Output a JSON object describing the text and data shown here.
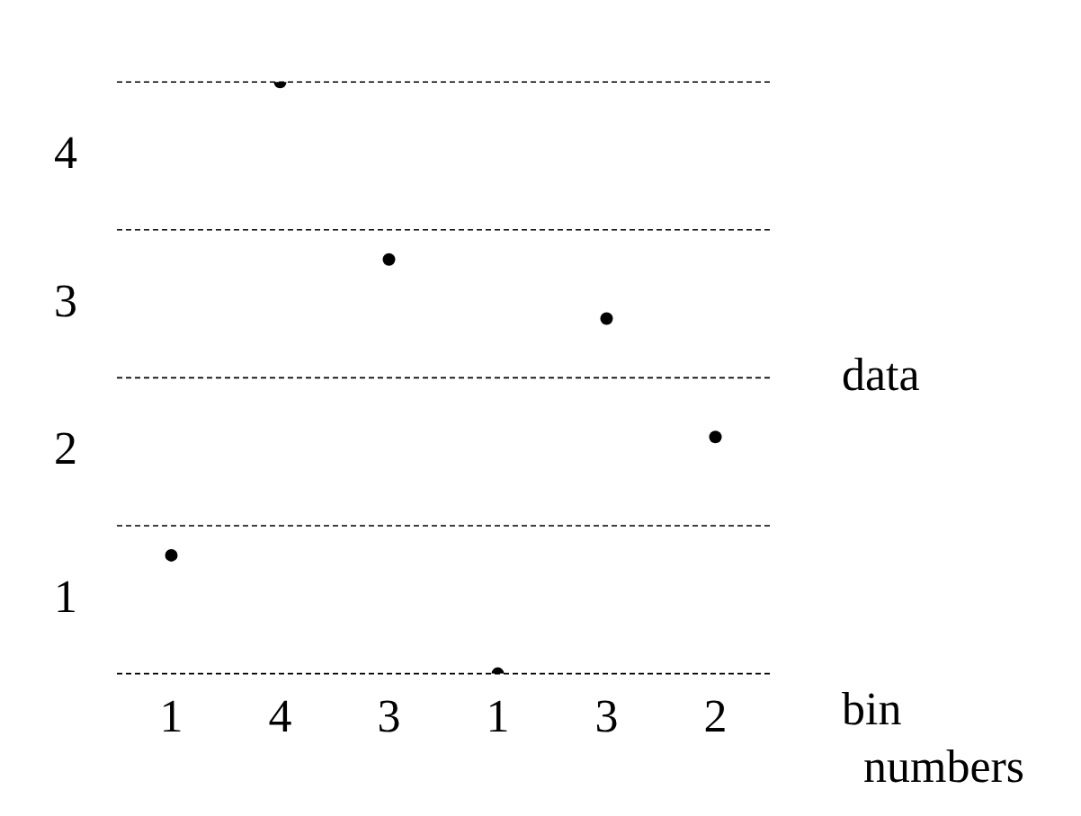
{
  "chart_data": {
    "type": "scatter",
    "xlabel": "bin numbers",
    "ylabel": "data",
    "categories": [
      "1",
      "4",
      "3",
      "1",
      "3",
      "2"
    ],
    "series": [
      {
        "color": "#000000",
        "values": [
          1.3,
          4.5,
          3.3,
          0.5,
          2.9,
          2.1
        ]
      }
    ],
    "ylim": [
      0.5,
      4.5
    ],
    "yticks": [
      1,
      2,
      3,
      4
    ],
    "marker": "circle",
    "legend": false,
    "ref_lines": [
      {
        "axis": "y",
        "value": 0.5,
        "color": "#000000",
        "line_style": "dashed"
      },
      {
        "axis": "y",
        "value": 1.5,
        "color": "#000000",
        "line_style": "dashed"
      },
      {
        "axis": "y",
        "value": 2.5,
        "color": "#000000",
        "line_style": "dashed"
      },
      {
        "axis": "y",
        "value": 3.5,
        "color": "#000000",
        "line_style": "dashed"
      },
      {
        "axis": "y",
        "value": 4.5,
        "color": "#000000",
        "line_style": "dashed"
      }
    ]
  }
}
